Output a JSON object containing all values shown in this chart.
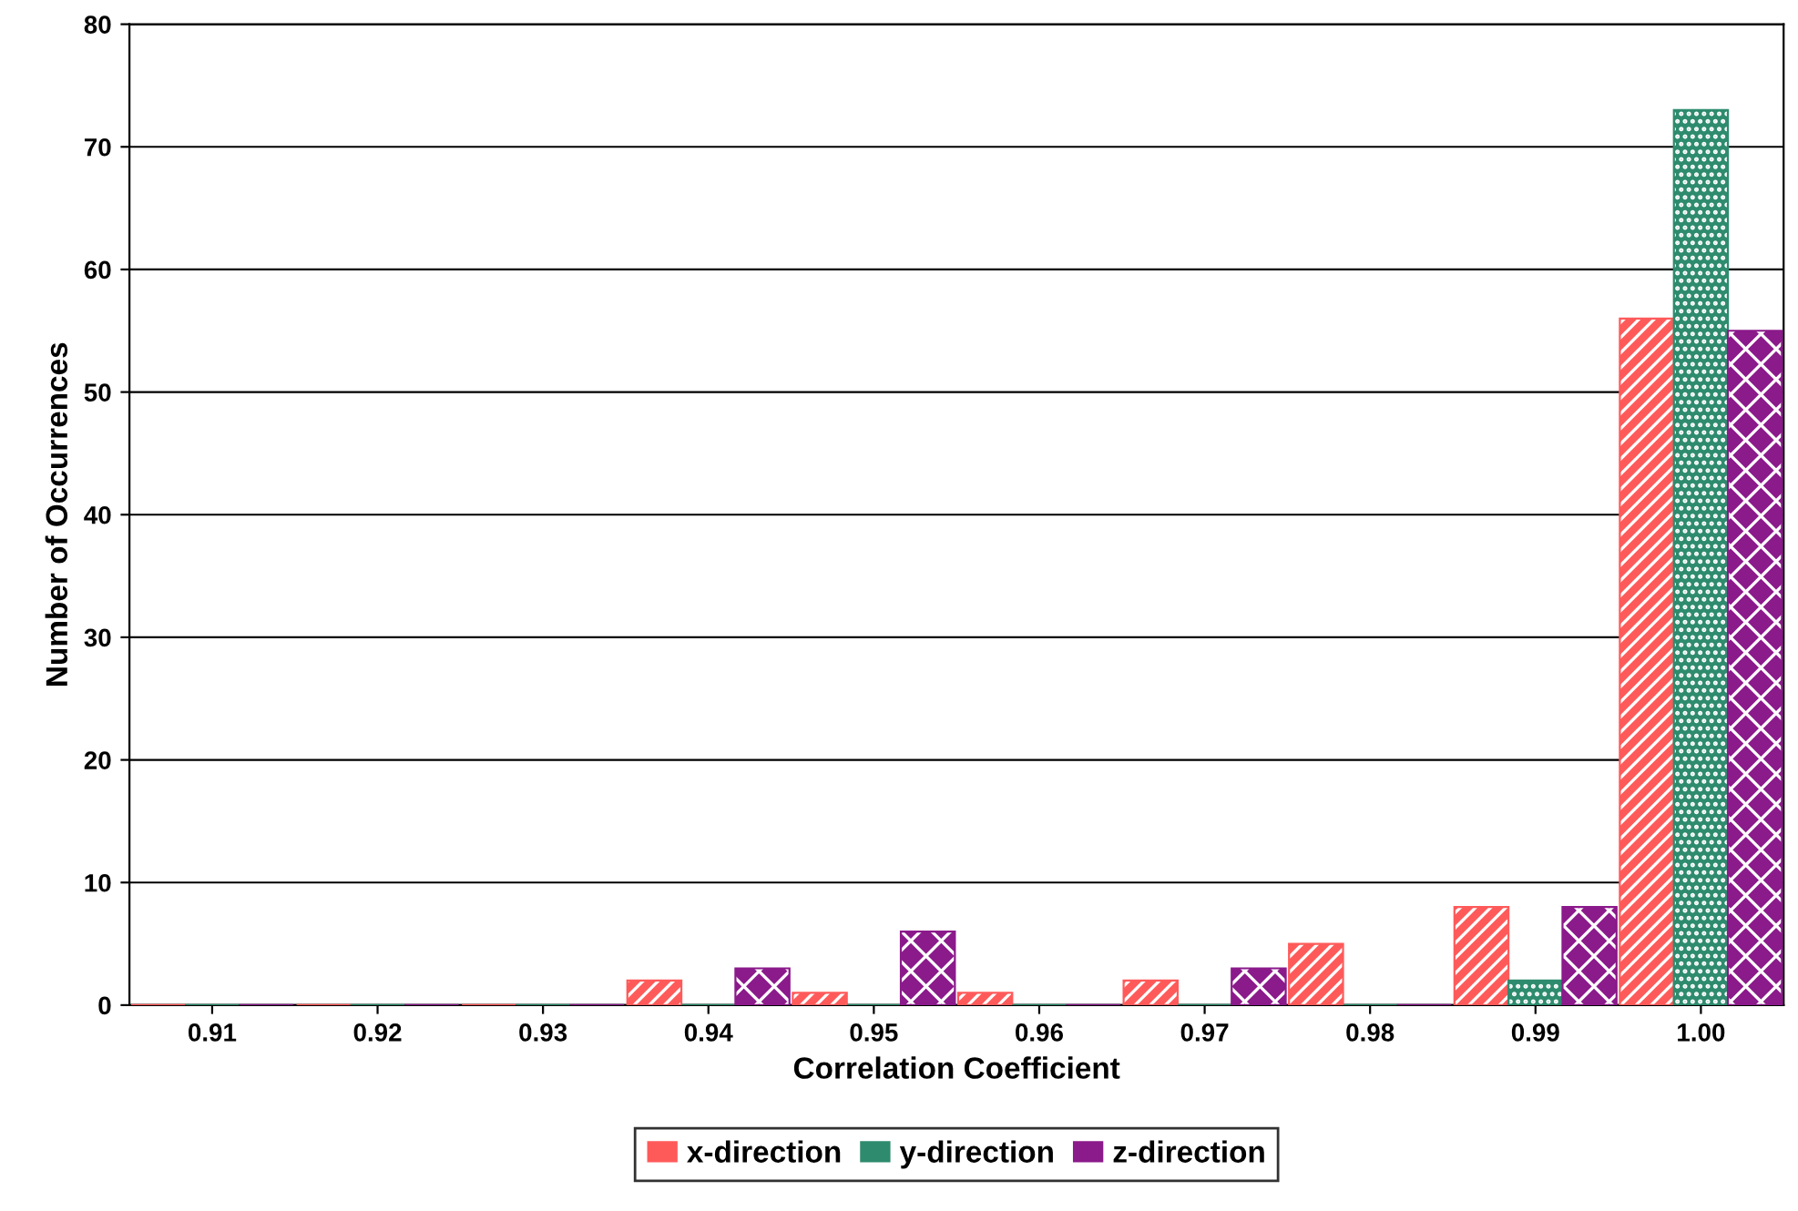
{
  "chart_data": {
    "type": "bar",
    "xlabel": "Correlation Coefficient",
    "ylabel": "Number of Occurrences",
    "categories": [
      "0.91",
      "0.92",
      "0.93",
      "0.94",
      "0.95",
      "0.96",
      "0.97",
      "0.98",
      "0.99",
      "1.00"
    ],
    "series": [
      {
        "name": "x-direction",
        "color": "#ff5a5a",
        "values": [
          0,
          0,
          0,
          2,
          1,
          1,
          2,
          5,
          8,
          56
        ]
      },
      {
        "name": "y-direction",
        "color": "#2e8b6e",
        "values": [
          0,
          0,
          0,
          0,
          0,
          0,
          0,
          0,
          2,
          73
        ]
      },
      {
        "name": "z-direction",
        "color": "#8b1a8b",
        "values": [
          0,
          0,
          0,
          3,
          6,
          0,
          3,
          0,
          8,
          55
        ]
      }
    ],
    "ylim": [
      0,
      80
    ],
    "yticks": [
      0,
      10,
      20,
      30,
      40,
      50,
      60,
      70,
      80
    ],
    "grid": "y",
    "legend": "bottom"
  }
}
